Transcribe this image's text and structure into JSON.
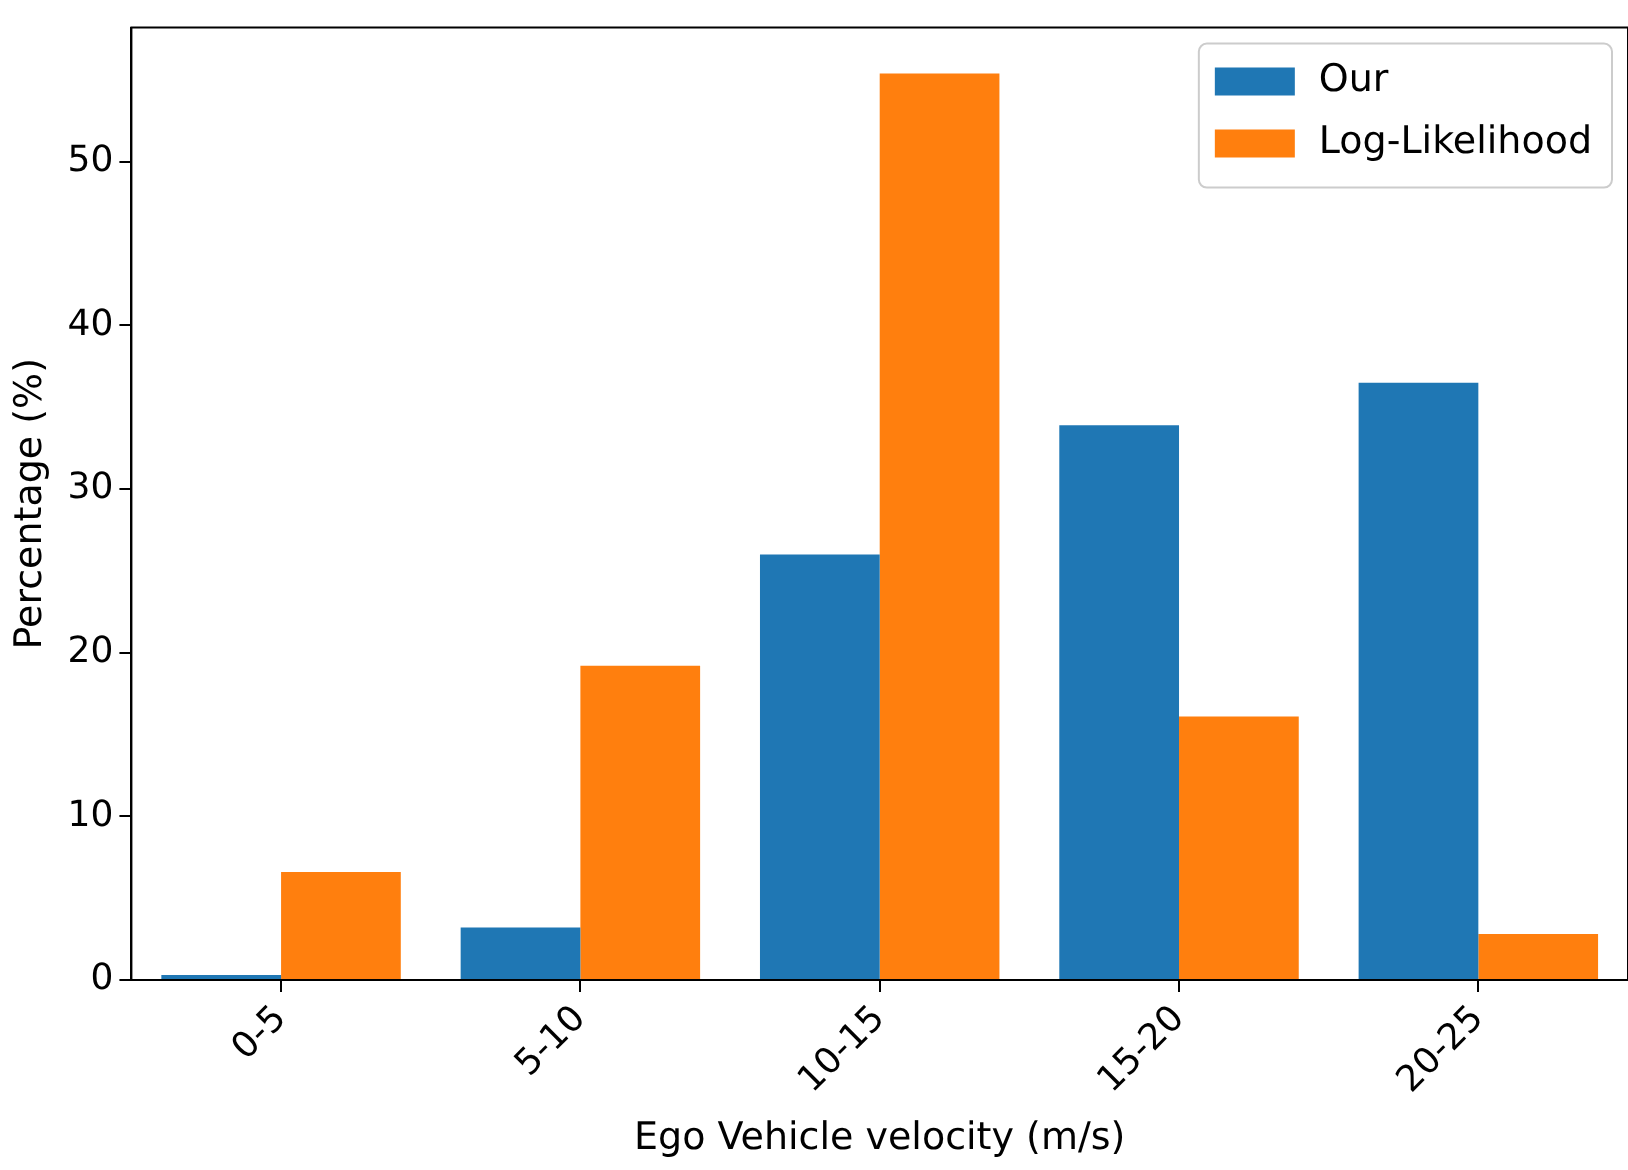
{
  "chart_data": {
    "type": "bar",
    "xlabel": "Ego Vehicle velocity (m/s)",
    "ylabel": "Percentage (%)",
    "categories": [
      "0-5",
      "5-10",
      "10-15",
      "15-20",
      "20-25"
    ],
    "series": [
      {
        "name": "Our",
        "color": "#1f77b4",
        "values": [
          0.3,
          3.2,
          26.0,
          33.9,
          36.5
        ]
      },
      {
        "name": "Log-Likelihood",
        "color": "#ff7f0e",
        "values": [
          6.6,
          19.2,
          55.4,
          16.1,
          2.8
        ]
      }
    ],
    "ylim": [
      0,
      58.2
    ],
    "yticks": [
      0,
      10,
      20,
      30,
      40,
      50
    ],
    "grid": false,
    "legend": "top right"
  }
}
